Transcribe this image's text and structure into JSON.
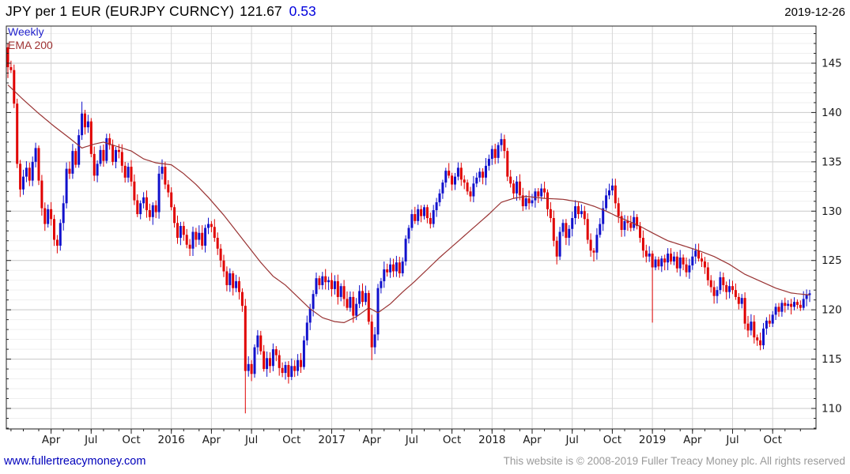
{
  "header": {
    "title": "JPY per 1 EUR (EURJPY CURNCY)",
    "last_price": "121.67",
    "change": "0.53",
    "date": "2019-12-26"
  },
  "legend": {
    "period": "Weekly",
    "overlay": "EMA 200"
  },
  "footer": {
    "website": "www.fullertreacymoney.com",
    "copyright": "This website is © 2008-2019 Fuller Treacy Money plc. All rights reserved"
  },
  "chart_data": {
    "type": "candlestick",
    "title": "JPY per 1 EUR (EURJPY CURNCY)",
    "last_price": 121.67,
    "change": 0.53,
    "period": "Weekly",
    "overlay": "EMA 200",
    "x_tick_labels": [
      "Apr",
      "Jul",
      "Oct",
      "2016",
      "Apr",
      "Jul",
      "Oct",
      "2017",
      "Apr",
      "Jul",
      "Oct",
      "2018",
      "Apr",
      "Jul",
      "Oct",
      "2019",
      "Apr",
      "Jul",
      "Oct"
    ],
    "y_ticks": [
      110,
      115,
      120,
      125,
      130,
      135,
      140,
      145
    ],
    "y_minor_step": 1,
    "ylim": [
      107.9,
      148.8
    ],
    "grid": true,
    "legend_position": "top-left",
    "first_open": 146.6,
    "year_order": [
      "2014",
      "2015",
      "2016",
      "2017",
      "2018",
      "2019"
    ],
    "closes_by_year": {
      "2014": [
        144.6
      ],
      "2015": [
        144.3,
        140.9,
        134.8,
        132.2,
        133.5,
        134.4,
        133.1,
        135.0,
        136.4,
        133.1,
        130.3,
        128.7,
        130.2,
        129.2,
        127.1,
        126.5,
        128.8,
        130.8,
        134.3,
        133.8,
        136.1,
        134.7,
        137.7,
        139.9,
        138.5,
        139.1,
        135.8,
        133.6,
        134.8,
        136.2,
        135.1,
        137.4,
        136.7,
        135.0,
        136.2,
        136.0,
        134.6,
        133.4,
        134.5,
        133.0,
        131.1,
        129.7,
        130.8,
        131.4,
        130.1,
        129.4,
        130.6,
        129.9,
        133.8,
        134.5,
        132.7,
        131.9
      ],
      "2016": [
        130.4,
        128.8,
        127.3,
        128.5,
        127.6,
        126.6,
        126.2,
        127.9,
        127.1,
        127.8,
        126.5,
        128.3,
        128.7,
        128.4,
        127.3,
        126.2,
        125.0,
        123.9,
        122.5,
        123.7,
        122.2,
        122.9,
        121.8,
        120.4,
        113.8,
        114.5,
        113.5,
        116.2,
        117.4,
        115.8,
        114.0,
        115.1,
        114.3,
        116.0,
        115.4,
        114.1,
        113.6,
        114.4,
        113.2,
        114.3,
        113.8,
        114.9,
        114.2,
        116.9,
        118.7,
        120.1,
        121.6,
        123.2,
        122.5,
        123.4,
        122.8,
        123.0
      ],
      "2017": [
        122.1,
        122.9,
        121.3,
        122.4,
        121.1,
        120.2,
        121.3,
        119.4,
        120.6,
        121.9,
        120.8,
        121.7,
        118.8,
        116.2,
        117.5,
        122.2,
        122.9,
        124.1,
        123.8,
        124.6,
        123.9,
        124.8,
        123.7,
        124.9,
        127.2,
        128.3,
        129.7,
        129.0,
        130.2,
        129.5,
        130.4,
        129.3,
        128.7,
        130.1,
        130.9,
        131.8,
        132.9,
        134.1,
        133.6,
        132.7,
        133.5,
        134.4,
        133.2,
        132.9,
        132.0,
        131.5,
        132.8,
        133.4,
        134.0,
        133.4,
        134.6,
        135.3
      ],
      "2018": [
        136.3,
        135.4,
        136.7,
        137.3,
        136.1,
        133.5,
        132.8,
        131.8,
        133.0,
        131.6,
        130.5,
        131.3,
        130.8,
        131.1,
        132.0,
        131.5,
        132.3,
        131.9,
        130.2,
        129.3,
        127.0,
        125.4,
        127.9,
        128.8,
        127.3,
        128.2,
        129.3,
        130.5,
        129.7,
        130.0,
        129.2,
        127.1,
        126.0,
        125.8,
        127.6,
        128.7,
        130.3,
        131.6,
        132.1,
        132.6,
        130.8,
        129.5,
        128.1,
        129.0,
        128.8,
        128.3,
        129.4,
        128.5,
        127.3,
        126.0,
        125.4,
        125.7
      ],
      "2019": [
        124.3,
        125.1,
        124.4,
        125.2,
        124.8,
        125.7,
        124.9,
        125.4,
        124.2,
        125.3,
        124.6,
        123.8,
        124.5,
        125.4,
        126.0,
        125.2,
        124.9,
        124.3,
        123.0,
        122.3,
        121.4,
        122.0,
        123.3,
        122.5,
        121.8,
        122.4,
        122.0,
        121.3,
        120.6,
        121.2,
        118.6,
        117.9,
        118.8,
        117.2,
        116.9,
        116.4,
        118.1,
        118.9,
        118.6,
        119.5,
        120.3,
        119.8,
        120.7,
        120.4,
        120.6,
        120.3,
        120.8,
        120.5,
        120.2,
        121.1,
        121.5,
        121.67
      ]
    },
    "wick_overrides": {
      "0": {
        "h": 147.0,
        "l": 143.5
      },
      "24": {
        "h": 141.1
      },
      "77": {
        "l": 109.5
      },
      "118": {
        "l": 114.9
      },
      "160": {
        "h": 137.9
      },
      "178": {
        "l": 124.6
      },
      "190": {
        "l": 124.9
      },
      "196": {
        "h": 133.3
      },
      "209": {
        "l": 118.7
      },
      "244": {
        "l": 115.9
      }
    },
    "ema_anchors": [
      [
        0,
        142.8
      ],
      [
        5,
        141.3
      ],
      [
        10,
        139.9
      ],
      [
        15,
        138.6
      ],
      [
        20,
        137.4
      ],
      [
        24,
        136.4
      ],
      [
        28,
        136.8
      ],
      [
        31,
        137.0
      ],
      [
        35,
        136.6
      ],
      [
        40,
        136.1
      ],
      [
        44,
        135.3
      ],
      [
        48,
        134.9
      ],
      [
        53,
        134.7
      ],
      [
        57,
        133.8
      ],
      [
        61,
        132.7
      ],
      [
        65,
        131.4
      ],
      [
        70,
        129.6
      ],
      [
        75,
        127.6
      ],
      [
        78,
        126.4
      ],
      [
        82,
        124.8
      ],
      [
        86,
        123.4
      ],
      [
        90,
        122.5
      ],
      [
        94,
        121.3
      ],
      [
        98,
        120.1
      ],
      [
        102,
        119.2
      ],
      [
        106,
        118.8
      ],
      [
        109,
        118.7
      ],
      [
        113,
        119.3
      ],
      [
        117,
        120.2
      ],
      [
        120,
        119.7
      ],
      [
        124,
        120.6
      ],
      [
        128,
        121.8
      ],
      [
        132,
        122.9
      ],
      [
        136,
        124.1
      ],
      [
        140,
        125.3
      ],
      [
        144,
        126.4
      ],
      [
        148,
        127.5
      ],
      [
        152,
        128.6
      ],
      [
        156,
        129.7
      ],
      [
        160,
        130.9
      ],
      [
        164,
        131.3
      ],
      [
        168,
        131.5
      ],
      [
        174,
        131.3
      ],
      [
        180,
        131.2
      ],
      [
        186,
        130.9
      ],
      [
        190,
        130.5
      ],
      [
        194,
        130.0
      ],
      [
        198,
        129.4
      ],
      [
        202,
        128.9
      ],
      [
        206,
        128.3
      ],
      [
        209,
        127.8
      ],
      [
        214,
        127.0
      ],
      [
        219,
        126.5
      ],
      [
        224,
        126.0
      ],
      [
        229,
        125.4
      ],
      [
        234,
        124.6
      ],
      [
        239,
        123.6
      ],
      [
        244,
        122.9
      ],
      [
        249,
        122.2
      ],
      [
        254,
        121.7
      ],
      [
        260,
        121.5
      ]
    ],
    "colors": {
      "up": "#1111cc",
      "down": "#e00000",
      "ema": "#993333",
      "grid_major": "#c9c9c9",
      "grid_minor": "#efefef",
      "grid_vertical": "#d6d6d6",
      "frame": "#222222",
      "tick": "#222222"
    }
  }
}
